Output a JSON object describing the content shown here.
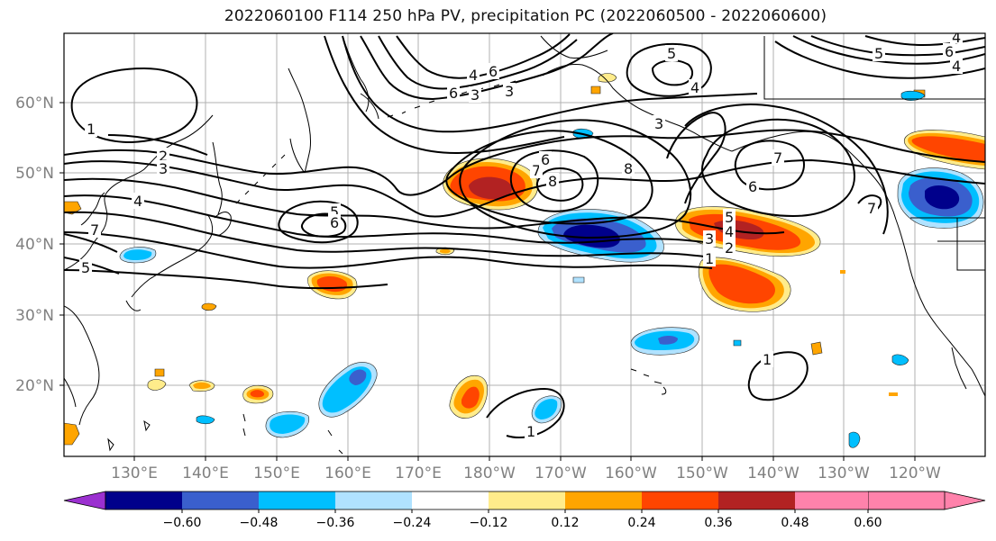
{
  "title": "2022060100 F114 250 hPa PV, precipitation PC (2022060500 - 2022060600)",
  "lat_labels": [
    "60°N",
    "50°N",
    "40°N",
    "30°N",
    "20°N"
  ],
  "lon_labels": [
    "130°E",
    "140°E",
    "150°E",
    "160°E",
    "170°E",
    "180°W",
    "170°W",
    "160°W",
    "150°W",
    "140°W",
    "130°W",
    "120°W"
  ],
  "colorbar": {
    "ticks": [
      "−0.60",
      "−0.48",
      "−0.36",
      "−0.24",
      "−0.12",
      "0.12",
      "0.24",
      "0.36",
      "0.48",
      "0.60"
    ],
    "colors": [
      "#9b30d0",
      "#00008b",
      "#3a5fcd",
      "#00bfff",
      "#b0e2ff",
      "#ffffff",
      "#ffec8b",
      "#ffa500",
      "#ff4500",
      "#b22222",
      "#ff82ab"
    ]
  },
  "contour_labels": [
    "1",
    "2",
    "3",
    "4",
    "5",
    "6",
    "7",
    "8",
    "5",
    "6",
    "3",
    "3",
    "4",
    "6",
    "5",
    "4",
    "8",
    "7",
    "6",
    "5",
    "4",
    "3",
    "2",
    "1",
    "7",
    "6",
    "7",
    "5",
    "6",
    "4",
    "1",
    "1",
    "3",
    "4"
  ],
  "shading_colors": {
    "pos_low": "#ffec8b",
    "pos_mid": "#ffa500",
    "pos_high": "#ff4500",
    "pos_top": "#b22222",
    "neg_low": "#b0e2ff",
    "neg_mid": "#00bfff",
    "neg_high": "#3a5fcd",
    "neg_top": "#00008b"
  }
}
